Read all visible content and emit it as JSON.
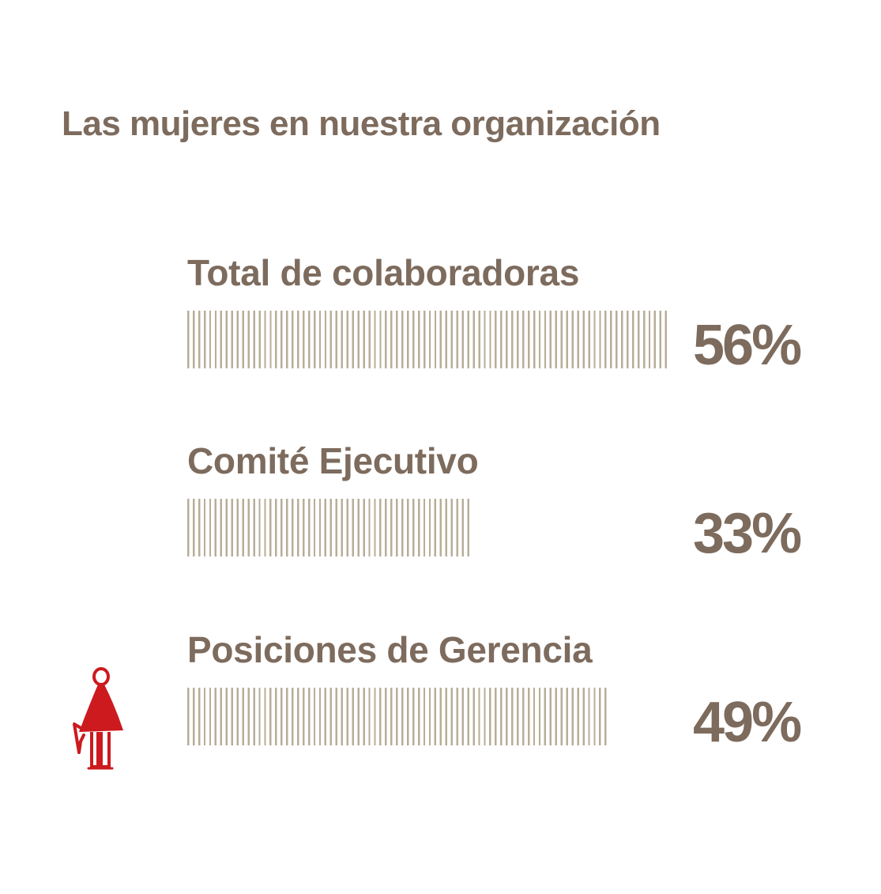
{
  "title": "Las mujeres en nuestra organización",
  "chart_data": {
    "type": "bar",
    "orientation": "horizontal",
    "title": "Las mujeres en nuestra organización",
    "categories": [
      "Total de colaboradoras",
      "Comité Ejecutivo",
      "Posiciones de Gerencia"
    ],
    "values": [
      56,
      33,
      49
    ],
    "value_labels": [
      "56%",
      "33%",
      "49%"
    ],
    "unit": "%",
    "bar_color": "#b8ad98",
    "text_color": "#7d6b5d"
  },
  "icon": {
    "name": "woman-figure-icon",
    "color": "#cc1a1f"
  }
}
